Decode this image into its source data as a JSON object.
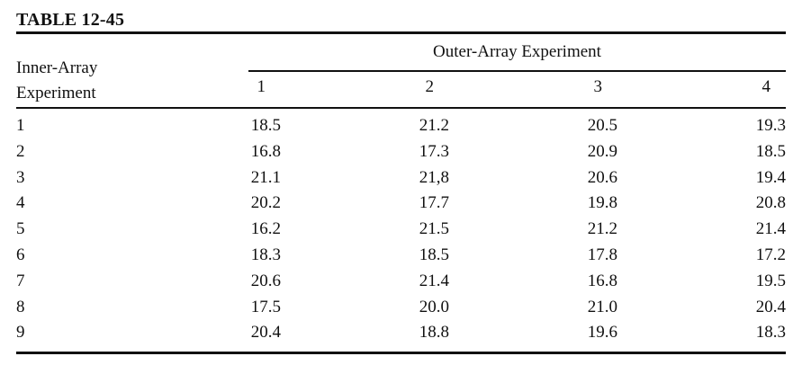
{
  "title": "TABLE 12-45",
  "table": {
    "row_axis": {
      "line1": "Inner-Array",
      "line2": "Experiment"
    },
    "group_header": "Outer-Array Experiment",
    "columns": [
      "1",
      "2",
      "3",
      "4"
    ],
    "rows": [
      {
        "label": "1",
        "values": [
          "18.5",
          "21.2",
          "20.5",
          "19.3"
        ]
      },
      {
        "label": "2",
        "values": [
          "16.8",
          "17.3",
          "20.9",
          "18.5"
        ]
      },
      {
        "label": "3",
        "values": [
          "21.1",
          "21,8",
          "20.6",
          "19.4"
        ]
      },
      {
        "label": "4",
        "values": [
          "20.2",
          "17.7",
          "19.8",
          "20.8"
        ]
      },
      {
        "label": "5",
        "values": [
          "16.2",
          "21.5",
          "21.2",
          "21.4"
        ]
      },
      {
        "label": "6",
        "values": [
          "18.3",
          "18.5",
          "17.8",
          "17.2"
        ]
      },
      {
        "label": "7",
        "values": [
          "20.6",
          "21.4",
          "16.8",
          "19.5"
        ]
      },
      {
        "label": "8",
        "values": [
          "17.5",
          "20.0",
          "21.0",
          "20.4"
        ]
      },
      {
        "label": "9",
        "values": [
          "20.4",
          "18.8",
          "19.6",
          "18.3"
        ]
      }
    ]
  },
  "colors": {
    "text": "#111111",
    "rule": "#111111",
    "background": "#ffffff"
  }
}
